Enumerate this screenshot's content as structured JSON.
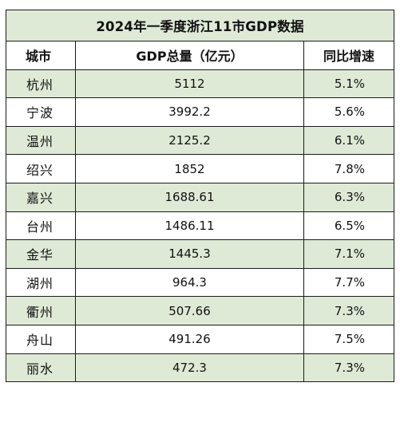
{
  "table": {
    "title": "2024年一季度浙江11市GDP数据",
    "headers": {
      "city": "城市",
      "gdp": "GDP总量（亿元）",
      "growth": "同比增速"
    },
    "rows": [
      {
        "city": "杭州",
        "gdp": "5112",
        "growth": "5.1%"
      },
      {
        "city": "宁波",
        "gdp": "3992.2",
        "growth": "5.6%"
      },
      {
        "city": "温州",
        "gdp": "2125.2",
        "growth": "6.1%"
      },
      {
        "city": "绍兴",
        "gdp": "1852",
        "growth": "7.8%"
      },
      {
        "city": "嘉兴",
        "gdp": "1688.61",
        "growth": "6.3%"
      },
      {
        "city": "台州",
        "gdp": "1486.11",
        "growth": "6.5%"
      },
      {
        "city": "金华",
        "gdp": "1445.3",
        "growth": "7.1%"
      },
      {
        "city": "湖州",
        "gdp": "964.3",
        "growth": "7.7%"
      },
      {
        "city": "衢州",
        "gdp": "507.66",
        "growth": "7.3%"
      },
      {
        "city": "舟山",
        "gdp": "491.26",
        "growth": "7.5%"
      },
      {
        "city": "丽水",
        "gdp": "472.3",
        "growth": "7.3%"
      }
    ]
  },
  "colors": {
    "shaded_row": "#dfead6",
    "plain_row": "#ffffff",
    "border": "#1a1a1a"
  }
}
